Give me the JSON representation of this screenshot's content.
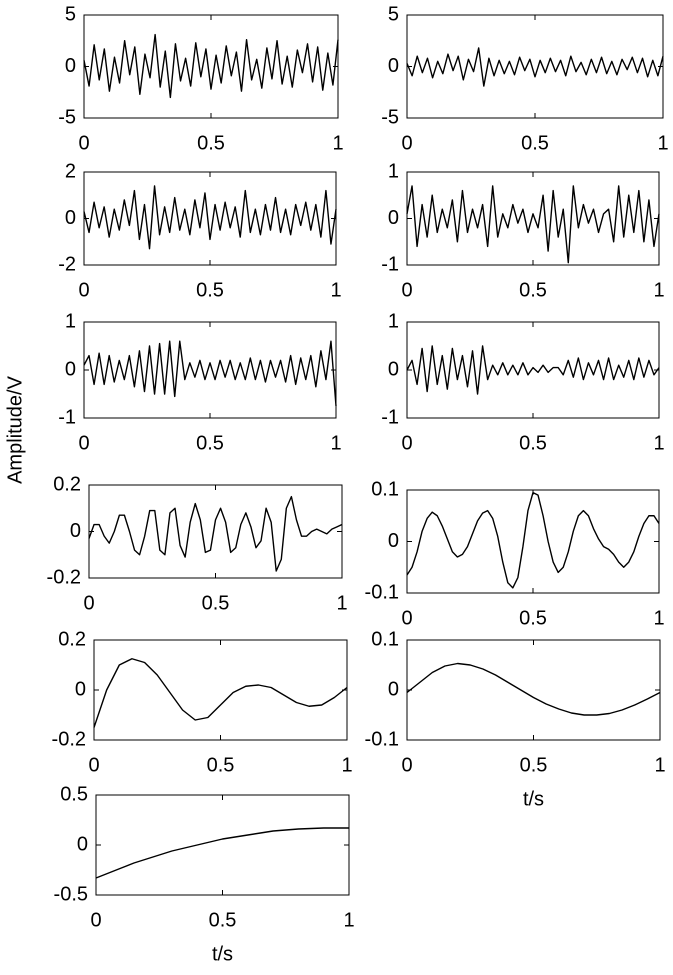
{
  "y_label": "Amplitude/V",
  "chart_data": [
    {
      "type": "line",
      "xlim": [
        0,
        1
      ],
      "xticks": [
        0,
        0.5,
        1
      ],
      "ylim": [
        -5,
        5
      ],
      "yticks": [
        -5,
        0,
        5
      ],
      "color": "#000000",
      "x": [
        0,
        0.02,
        0.04,
        0.06,
        0.08,
        0.1,
        0.12,
        0.14,
        0.16,
        0.18,
        0.2,
        0.22,
        0.24,
        0.26,
        0.28,
        0.3,
        0.32,
        0.34,
        0.36,
        0.38,
        0.4,
        0.42,
        0.44,
        0.46,
        0.48,
        0.5,
        0.52,
        0.54,
        0.56,
        0.58,
        0.6,
        0.62,
        0.64,
        0.66,
        0.68,
        0.7,
        0.72,
        0.74,
        0.76,
        0.78,
        0.8,
        0.82,
        0.84,
        0.86,
        0.88,
        0.9,
        0.92,
        0.94,
        0.96,
        0.98,
        1
      ],
      "values": [
        0.6,
        -1.9,
        2.1,
        -1.3,
        1.7,
        -2.4,
        0.9,
        -1.6,
        2.5,
        -0.8,
        1.9,
        -2.7,
        1.2,
        -1.1,
        3.1,
        -2.0,
        1.5,
        -3.0,
        2.2,
        -1.4,
        0.8,
        -1.9,
        2.3,
        -1.0,
        1.7,
        -2.2,
        1.1,
        -1.6,
        2.0,
        -0.9,
        1.4,
        -2.4,
        2.6,
        -1.3,
        0.7,
        -2.1,
        1.8,
        -1.2,
        2.5,
        -1.7,
        1.0,
        -2.0,
        1.6,
        -0.6,
        2.2,
        -1.5,
        1.9,
        -2.3,
        1.3,
        -1.8,
        2.6
      ]
    },
    {
      "type": "line",
      "xlim": [
        0,
        1
      ],
      "xticks": [
        0,
        0.5,
        1
      ],
      "ylim": [
        -5,
        5
      ],
      "yticks": [
        -5,
        0,
        5
      ],
      "color": "#000000",
      "x": [
        0,
        0.02,
        0.04,
        0.06,
        0.08,
        0.1,
        0.12,
        0.14,
        0.16,
        0.18,
        0.2,
        0.22,
        0.24,
        0.26,
        0.28,
        0.3,
        0.32,
        0.34,
        0.36,
        0.38,
        0.4,
        0.42,
        0.44,
        0.46,
        0.48,
        0.5,
        0.52,
        0.54,
        0.56,
        0.58,
        0.6,
        0.62,
        0.64,
        0.66,
        0.68,
        0.7,
        0.72,
        0.74,
        0.76,
        0.78,
        0.8,
        0.82,
        0.84,
        0.86,
        0.88,
        0.9,
        0.92,
        0.94,
        0.96,
        0.98,
        1
      ],
      "values": [
        0.3,
        -0.9,
        1.0,
        -0.6,
        0.8,
        -1.1,
        0.5,
        -0.7,
        1.2,
        -0.4,
        1.0,
        -1.3,
        0.7,
        -0.5,
        1.8,
        -1.9,
        0.8,
        -0.9,
        0.6,
        -0.7,
        0.5,
        -0.8,
        0.9,
        -0.4,
        0.7,
        -1.0,
        0.6,
        -0.6,
        0.8,
        -0.5,
        0.6,
        -0.9,
        1.0,
        -0.5,
        0.4,
        -0.8,
        0.7,
        -0.6,
        0.9,
        -0.7,
        0.5,
        -0.8,
        0.7,
        -0.3,
        0.9,
        -0.6,
        0.8,
        -1.0,
        0.6,
        -0.9,
        1.0
      ]
    },
    {
      "type": "line",
      "xlim": [
        0,
        1
      ],
      "xticks": [
        0,
        0.5,
        1
      ],
      "ylim": [
        -2,
        2
      ],
      "yticks": [
        -2,
        0,
        2
      ],
      "color": "#000000",
      "x": [
        0,
        0.02,
        0.04,
        0.06,
        0.08,
        0.1,
        0.12,
        0.14,
        0.16,
        0.18,
        0.2,
        0.22,
        0.24,
        0.26,
        0.28,
        0.3,
        0.32,
        0.34,
        0.36,
        0.38,
        0.4,
        0.42,
        0.44,
        0.46,
        0.48,
        0.5,
        0.52,
        0.54,
        0.56,
        0.58,
        0.6,
        0.62,
        0.64,
        0.66,
        0.68,
        0.7,
        0.72,
        0.74,
        0.76,
        0.78,
        0.8,
        0.82,
        0.84,
        0.86,
        0.88,
        0.9,
        0.92,
        0.94,
        0.96,
        0.98,
        1
      ],
      "values": [
        0.3,
        -0.6,
        0.7,
        -0.4,
        0.5,
        -0.8,
        0.4,
        -0.5,
        0.8,
        -0.3,
        1.2,
        -0.9,
        0.6,
        -1.3,
        1.4,
        -0.7,
        0.5,
        -0.6,
        0.9,
        -0.5,
        0.4,
        -0.7,
        0.8,
        -0.4,
        1.1,
        -0.9,
        0.6,
        -0.5,
        0.7,
        -0.4,
        0.5,
        -0.8,
        1.2,
        -0.6,
        0.4,
        -0.7,
        0.6,
        -0.5,
        0.9,
        -0.6,
        0.4,
        -0.7,
        0.6,
        -0.3,
        0.7,
        -0.5,
        0.6,
        -0.8,
        1.2,
        -1.1,
        0.4
      ]
    },
    {
      "type": "line",
      "xlim": [
        0,
        1
      ],
      "xticks": [
        0,
        0.5,
        1
      ],
      "ylim": [
        -1,
        1
      ],
      "yticks": [
        -1,
        0,
        1
      ],
      "color": "#000000",
      "x": [
        0,
        0.02,
        0.04,
        0.06,
        0.08,
        0.1,
        0.12,
        0.14,
        0.16,
        0.18,
        0.2,
        0.22,
        0.24,
        0.26,
        0.28,
        0.3,
        0.32,
        0.34,
        0.36,
        0.38,
        0.4,
        0.42,
        0.44,
        0.46,
        0.48,
        0.5,
        0.52,
        0.54,
        0.56,
        0.58,
        0.6,
        0.62,
        0.64,
        0.66,
        0.68,
        0.7,
        0.72,
        0.74,
        0.76,
        0.78,
        0.8,
        0.82,
        0.84,
        0.86,
        0.88,
        0.9,
        0.92,
        0.94,
        0.96,
        0.98,
        1
      ],
      "values": [
        0.1,
        0.7,
        -0.6,
        0.3,
        -0.4,
        0.5,
        -0.3,
        0.2,
        -0.2,
        0.4,
        -0.5,
        0.6,
        -0.3,
        0.2,
        -0.2,
        0.3,
        -0.6,
        0.7,
        -0.4,
        0.1,
        -0.2,
        0.3,
        -0.1,
        0.2,
        -0.3,
        0.1,
        -0.2,
        0.5,
        -0.7,
        0.6,
        -0.4,
        0.2,
        -0.95,
        0.7,
        -0.2,
        0.3,
        -0.1,
        0.2,
        -0.3,
        0.1,
        0.2,
        -0.5,
        0.7,
        -0.4,
        0.5,
        -0.3,
        0.6,
        -0.5,
        0.4,
        -0.6,
        0.1
      ]
    },
    {
      "type": "line",
      "xlim": [
        0,
        1
      ],
      "xticks": [
        0,
        0.5,
        1
      ],
      "ylim": [
        -1,
        1
      ],
      "yticks": [
        -1,
        0,
        1
      ],
      "color": "#000000",
      "x": [
        0,
        0.02,
        0.04,
        0.06,
        0.08,
        0.1,
        0.12,
        0.14,
        0.16,
        0.18,
        0.2,
        0.22,
        0.24,
        0.26,
        0.28,
        0.3,
        0.32,
        0.34,
        0.36,
        0.38,
        0.4,
        0.42,
        0.44,
        0.46,
        0.48,
        0.5,
        0.52,
        0.54,
        0.56,
        0.58,
        0.6,
        0.62,
        0.64,
        0.66,
        0.68,
        0.7,
        0.72,
        0.74,
        0.76,
        0.78,
        0.8,
        0.82,
        0.84,
        0.86,
        0.88,
        0.9,
        0.92,
        0.94,
        0.96,
        0.98,
        1
      ],
      "values": [
        0.1,
        0.3,
        -0.3,
        0.35,
        -0.3,
        0.3,
        -0.25,
        0.2,
        -0.2,
        0.3,
        -0.35,
        0.4,
        -0.45,
        0.5,
        -0.5,
        0.55,
        -0.5,
        0.6,
        -0.55,
        0.6,
        -0.2,
        0.15,
        -0.15,
        0.2,
        -0.2,
        0.15,
        -0.2,
        0.2,
        -0.15,
        0.2,
        -0.2,
        0.15,
        -0.2,
        0.25,
        -0.2,
        0.2,
        -0.25,
        0.2,
        -0.15,
        0.2,
        -0.25,
        0.3,
        -0.3,
        0.25,
        -0.2,
        0.3,
        -0.35,
        0.4,
        -0.2,
        0.6,
        -0.75
      ]
    },
    {
      "type": "line",
      "xlim": [
        0,
        1
      ],
      "xticks": [
        0,
        0.5,
        1
      ],
      "ylim": [
        -1,
        1
      ],
      "yticks": [
        -1,
        0,
        1
      ],
      "color": "#000000",
      "x": [
        0,
        0.02,
        0.04,
        0.06,
        0.08,
        0.1,
        0.12,
        0.14,
        0.16,
        0.18,
        0.2,
        0.22,
        0.24,
        0.26,
        0.28,
        0.3,
        0.32,
        0.34,
        0.36,
        0.38,
        0.4,
        0.42,
        0.44,
        0.46,
        0.48,
        0.5,
        0.52,
        0.54,
        0.56,
        0.58,
        0.6,
        0.62,
        0.64,
        0.66,
        0.68,
        0.7,
        0.72,
        0.74,
        0.76,
        0.78,
        0.8,
        0.82,
        0.84,
        0.86,
        0.88,
        0.9,
        0.92,
        0.94,
        0.96,
        0.98,
        1
      ],
      "values": [
        0,
        0.2,
        -0.3,
        0.45,
        -0.45,
        0.5,
        -0.3,
        0.3,
        -0.4,
        0.45,
        -0.2,
        0.3,
        -0.35,
        0.4,
        -0.5,
        0.5,
        -0.2,
        0.1,
        -0.1,
        0.15,
        -0.1,
        0.1,
        -0.1,
        0.15,
        -0.1,
        0.05,
        -0.05,
        0.1,
        -0.05,
        0.05,
        0.05,
        -0.1,
        0.2,
        -0.15,
        0.25,
        -0.2,
        0.15,
        -0.1,
        0.2,
        -0.2,
        0.25,
        -0.2,
        0.1,
        -0.15,
        0.2,
        -0.2,
        0.25,
        -0.15,
        0.2,
        -0.1,
        0.05
      ]
    },
    {
      "type": "line",
      "xlim": [
        0,
        1
      ],
      "xticks": [
        0,
        0.5,
        1
      ],
      "ylim": [
        -0.2,
        0.2
      ],
      "yticks": [
        -0.2,
        0,
        0.2
      ],
      "color": "#000000",
      "x": [
        0,
        0.02,
        0.04,
        0.06,
        0.08,
        0.1,
        0.12,
        0.14,
        0.16,
        0.18,
        0.2,
        0.22,
        0.24,
        0.26,
        0.28,
        0.3,
        0.32,
        0.34,
        0.36,
        0.38,
        0.4,
        0.42,
        0.44,
        0.46,
        0.48,
        0.5,
        0.52,
        0.54,
        0.56,
        0.58,
        0.6,
        0.62,
        0.64,
        0.66,
        0.68,
        0.7,
        0.72,
        0.74,
        0.76,
        0.78,
        0.8,
        0.82,
        0.84,
        0.86,
        0.88,
        0.9,
        0.92,
        0.94,
        0.96,
        0.98,
        1
      ],
      "values": [
        -0.03,
        0.03,
        0.03,
        -0.02,
        -0.05,
        0.0,
        0.07,
        0.07,
        0.0,
        -0.08,
        -0.1,
        -0.02,
        0.09,
        0.09,
        -0.08,
        -0.1,
        0.08,
        0.1,
        -0.06,
        -0.11,
        0.04,
        0.12,
        0.05,
        -0.09,
        -0.08,
        0.05,
        0.1,
        0.04,
        -0.09,
        -0.07,
        0.03,
        0.08,
        0.02,
        -0.07,
        -0.04,
        0.1,
        0.04,
        -0.17,
        -0.12,
        0.1,
        0.15,
        0.05,
        -0.02,
        -0.02,
        0.0,
        0.01,
        0.0,
        -0.01,
        0.01,
        0.02,
        0.03
      ]
    },
    {
      "type": "line",
      "xlim": [
        0,
        1
      ],
      "xticks": [
        0,
        0.5,
        1
      ],
      "ylim": [
        -0.1,
        0.1
      ],
      "yticks": [
        -0.1,
        0,
        0.1
      ],
      "color": "#000000",
      "x": [
        0,
        0.02,
        0.04,
        0.06,
        0.08,
        0.1,
        0.12,
        0.14,
        0.16,
        0.18,
        0.2,
        0.22,
        0.24,
        0.26,
        0.28,
        0.3,
        0.32,
        0.34,
        0.36,
        0.38,
        0.4,
        0.42,
        0.44,
        0.46,
        0.48,
        0.5,
        0.52,
        0.54,
        0.56,
        0.58,
        0.6,
        0.62,
        0.64,
        0.66,
        0.68,
        0.7,
        0.72,
        0.74,
        0.76,
        0.78,
        0.8,
        0.82,
        0.84,
        0.86,
        0.88,
        0.9,
        0.92,
        0.94,
        0.96,
        0.98,
        1
      ],
      "values": [
        -0.065,
        -0.05,
        -0.02,
        0.02,
        0.045,
        0.057,
        0.05,
        0.03,
        0.005,
        -0.02,
        -0.03,
        -0.025,
        -0.01,
        0.015,
        0.04,
        0.055,
        0.06,
        0.045,
        0.01,
        -0.04,
        -0.08,
        -0.09,
        -0.07,
        -0.01,
        0.06,
        0.095,
        0.09,
        0.05,
        0.0,
        -0.04,
        -0.06,
        -0.05,
        -0.02,
        0.02,
        0.05,
        0.06,
        0.05,
        0.025,
        0.005,
        -0.01,
        -0.015,
        -0.025,
        -0.04,
        -0.05,
        -0.04,
        -0.02,
        0.01,
        0.035,
        0.05,
        0.05,
        0.035
      ]
    },
    {
      "type": "line",
      "xlim": [
        0,
        1
      ],
      "xticks": [
        0,
        0.5,
        1
      ],
      "ylim": [
        -0.2,
        0.2
      ],
      "yticks": [
        -0.2,
        0,
        0.2
      ],
      "color": "#000000",
      "x": [
        0,
        0.05,
        0.1,
        0.15,
        0.2,
        0.25,
        0.3,
        0.35,
        0.4,
        0.45,
        0.5,
        0.55,
        0.6,
        0.65,
        0.7,
        0.75,
        0.8,
        0.85,
        0.9,
        0.95,
        1
      ],
      "values": [
        -0.15,
        0.0,
        0.1,
        0.125,
        0.11,
        0.06,
        -0.01,
        -0.08,
        -0.12,
        -0.11,
        -0.06,
        -0.01,
        0.015,
        0.02,
        0.01,
        -0.02,
        -0.05,
        -0.065,
        -0.06,
        -0.03,
        0.01
      ]
    },
    {
      "type": "line",
      "xlim": [
        0,
        1
      ],
      "xticks": [
        0,
        0.5,
        1
      ],
      "ylim": [
        -0.1,
        0.1
      ],
      "yticks": [
        -0.1,
        0,
        0.1
      ],
      "color": "#000000",
      "x_label": "t/s",
      "x": [
        0,
        0.05,
        0.1,
        0.15,
        0.2,
        0.25,
        0.3,
        0.35,
        0.4,
        0.45,
        0.5,
        0.55,
        0.6,
        0.65,
        0.7,
        0.75,
        0.8,
        0.85,
        0.9,
        0.95,
        1
      ],
      "values": [
        -0.005,
        0.015,
        0.035,
        0.048,
        0.053,
        0.05,
        0.042,
        0.03,
        0.015,
        0.0,
        -0.015,
        -0.028,
        -0.038,
        -0.046,
        -0.05,
        -0.05,
        -0.047,
        -0.04,
        -0.03,
        -0.018,
        -0.005
      ]
    },
    {
      "type": "line",
      "xlim": [
        0,
        1
      ],
      "xticks": [
        0,
        0.5,
        1
      ],
      "ylim": [
        -0.5,
        0.5
      ],
      "yticks": [
        -0.5,
        0,
        0.5
      ],
      "color": "#000000",
      "x_label": "t/s",
      "x": [
        0,
        0.05,
        0.1,
        0.15,
        0.2,
        0.25,
        0.3,
        0.35,
        0.4,
        0.45,
        0.5,
        0.55,
        0.6,
        0.65,
        0.7,
        0.75,
        0.8,
        0.85,
        0.9,
        0.95,
        1
      ],
      "values": [
        -0.33,
        -0.28,
        -0.23,
        -0.18,
        -0.14,
        -0.1,
        -0.06,
        -0.03,
        0.0,
        0.03,
        0.06,
        0.08,
        0.1,
        0.12,
        0.14,
        0.15,
        0.16,
        0.165,
        0.17,
        0.17,
        0.17
      ]
    }
  ]
}
